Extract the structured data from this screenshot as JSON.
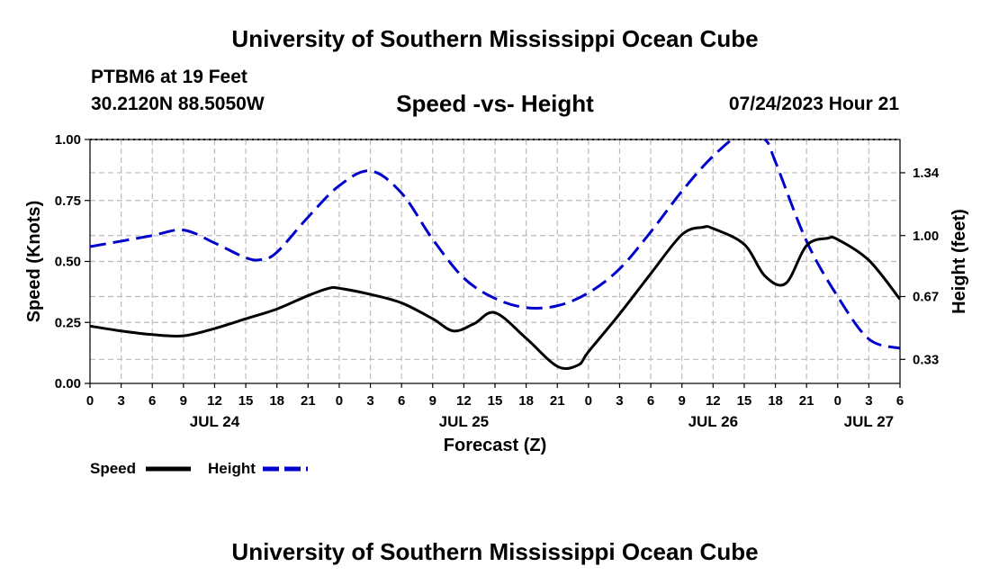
{
  "header": {
    "title": "University of Southern Mississippi Ocean Cube",
    "station": "PTBM6 at 19 Feet",
    "coordinates": "30.2120N  88.5050W",
    "subtitle": "Speed -vs- Height",
    "datetime": "07/24/2023 Hour 21"
  },
  "footer": {
    "title": "University of Southern Mississippi Ocean Cube"
  },
  "colors": {
    "speed": "#000000",
    "height": "#0000cc",
    "grid": "#bbbbbb"
  },
  "chart_data": {
    "type": "line",
    "title": "Speed -vs- Height",
    "xlabel": "Forecast (Z)",
    "ylabel": "Speed (Knots)",
    "y2label": "Height (feet)",
    "x_unit": "hours from 2023-07-24 00Z",
    "xlim": [
      0,
      78
    ],
    "ylim": [
      0,
      1
    ],
    "y2lim": [
      0.2,
      1.52
    ],
    "x_ticks": [
      {
        "x": 0,
        "label": "0"
      },
      {
        "x": 3,
        "label": "3"
      },
      {
        "x": 6,
        "label": "6"
      },
      {
        "x": 9,
        "label": "9"
      },
      {
        "x": 12,
        "label": "12"
      },
      {
        "x": 15,
        "label": "15"
      },
      {
        "x": 18,
        "label": "18"
      },
      {
        "x": 21,
        "label": "21"
      },
      {
        "x": 24,
        "label": "0"
      },
      {
        "x": 27,
        "label": "3"
      },
      {
        "x": 30,
        "label": "6"
      },
      {
        "x": 33,
        "label": "9"
      },
      {
        "x": 36,
        "label": "12"
      },
      {
        "x": 39,
        "label": "15"
      },
      {
        "x": 42,
        "label": "18"
      },
      {
        "x": 45,
        "label": "21"
      },
      {
        "x": 48,
        "label": "0"
      },
      {
        "x": 51,
        "label": "3"
      },
      {
        "x": 54,
        "label": "6"
      },
      {
        "x": 57,
        "label": "9"
      },
      {
        "x": 60,
        "label": "12"
      },
      {
        "x": 63,
        "label": "15"
      },
      {
        "x": 66,
        "label": "18"
      },
      {
        "x": 69,
        "label": "21"
      },
      {
        "x": 72,
        "label": "0"
      },
      {
        "x": 75,
        "label": "3"
      },
      {
        "x": 78,
        "label": "6"
      }
    ],
    "date_labels": [
      {
        "x": 12,
        "label": "JUL 24"
      },
      {
        "x": 36,
        "label": "JUL 25"
      },
      {
        "x": 60,
        "label": "JUL 26"
      },
      {
        "x": 75,
        "label": "JUL 27"
      }
    ],
    "y_ticks": [
      {
        "v": 0.0,
        "label": "0.00"
      },
      {
        "v": 0.25,
        "label": "0.25"
      },
      {
        "v": 0.5,
        "label": "0.50"
      },
      {
        "v": 0.75,
        "label": "0.75"
      },
      {
        "v": 1.0,
        "label": "1.00"
      }
    ],
    "y2_ticks": [
      {
        "v": 0.33,
        "label": "0.33"
      },
      {
        "v": 0.67,
        "label": "0.67"
      },
      {
        "v": 1.0,
        "label": "1.00"
      },
      {
        "v": 1.34,
        "label": "1.34"
      }
    ],
    "series": [
      {
        "name": "Speed",
        "axis": "left",
        "style": "solid",
        "x": [
          0,
          3,
          6,
          9,
          12,
          15,
          18,
          21,
          23,
          24,
          27,
          30,
          33,
          35,
          37,
          39,
          42,
          45,
          47,
          48,
          51,
          54,
          57,
          59,
          60,
          63,
          65,
          67,
          69,
          71,
          72,
          75,
          78
        ],
        "y": [
          0.235,
          0.215,
          0.2,
          0.195,
          0.225,
          0.265,
          0.305,
          0.36,
          0.39,
          0.39,
          0.365,
          0.33,
          0.265,
          0.215,
          0.245,
          0.29,
          0.185,
          0.07,
          0.075,
          0.13,
          0.285,
          0.45,
          0.61,
          0.64,
          0.635,
          0.57,
          0.44,
          0.41,
          0.565,
          0.595,
          0.59,
          0.505,
          0.345
        ]
      },
      {
        "name": "Height",
        "axis": "right",
        "style": "dashed",
        "x": [
          0,
          3,
          6,
          9,
          12,
          15,
          16.5,
          18,
          21,
          24,
          27,
          30,
          33,
          36,
          39,
          42,
          45,
          48,
          51,
          54,
          57,
          60,
          63,
          65,
          66,
          69,
          72,
          75,
          78
        ],
        "y": [
          0.94,
          0.97,
          1.0,
          1.03,
          0.96,
          0.88,
          0.87,
          0.91,
          1.1,
          1.27,
          1.35,
          1.23,
          0.98,
          0.77,
          0.66,
          0.61,
          0.62,
          0.69,
          0.82,
          1.02,
          1.24,
          1.43,
          1.56,
          1.52,
          1.4,
          0.97,
          0.67,
          0.44,
          0.39
        ]
      }
    ],
    "legend": {
      "position": "bottom-left",
      "entries": [
        "Speed",
        "Height"
      ]
    }
  }
}
